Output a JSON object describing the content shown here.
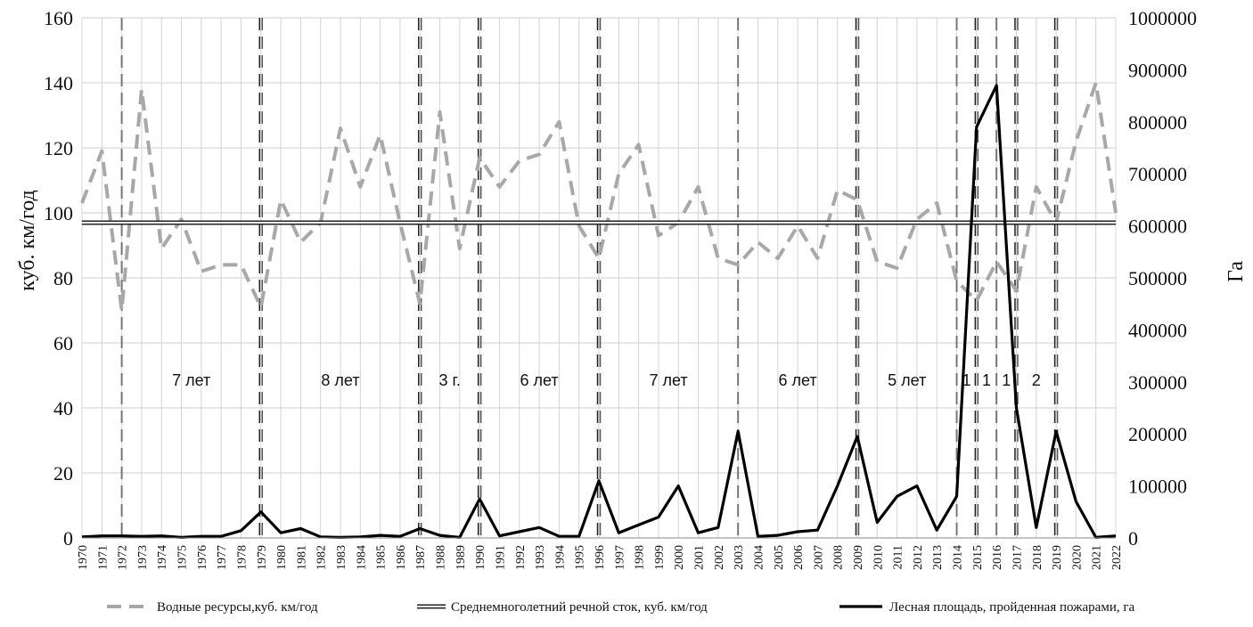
{
  "chart_data": {
    "type": "line",
    "title": "",
    "xlabel": "",
    "ylabel_left": "куб. км/год",
    "ylabel_right": "Га",
    "ylim_left": [
      0,
      160
    ],
    "ylim_right": [
      0,
      1000000
    ],
    "yticks_left": [
      "0",
      "20",
      "40",
      "60",
      "80",
      "100",
      "120",
      "140",
      "160"
    ],
    "yticks_right": [
      "0",
      "100000",
      "200000",
      "300000",
      "400000",
      "500000",
      "600000",
      "700000",
      "800000",
      "900000",
      "1000000"
    ],
    "grid": true,
    "legend_position": "bottom",
    "x": [
      1970,
      1971,
      1972,
      1973,
      1974,
      1975,
      1976,
      1977,
      1978,
      1979,
      1980,
      1981,
      1982,
      1983,
      1984,
      1985,
      1986,
      1987,
      1988,
      1989,
      1990,
      1991,
      1992,
      1993,
      1994,
      1995,
      1996,
      1997,
      1998,
      1999,
      2000,
      2001,
      2002,
      2003,
      2004,
      2005,
      2006,
      2007,
      2008,
      2009,
      2010,
      2011,
      2012,
      2013,
      2014,
      2015,
      2016,
      2017,
      2018,
      2019,
      2020,
      2021,
      2022
    ],
    "series": [
      {
        "name": "Водные ресурсы,куб. км/год",
        "axis": "left",
        "style": "dashed-gray",
        "color": "#a8a8a8",
        "values": [
          103,
          119,
          70,
          138,
          89,
          98,
          82,
          84,
          84,
          71,
          104,
          91,
          97,
          126,
          108,
          124,
          97,
          72,
          131,
          89,
          117,
          108,
          116,
          118,
          128,
          96,
          86,
          112,
          121,
          93,
          97,
          108,
          86,
          84,
          91,
          86,
          96,
          86,
          107,
          104,
          85,
          83,
          98,
          103,
          79,
          73,
          85,
          76,
          108,
          97,
          122,
          140,
          100
        ]
      },
      {
        "name": "Среднемноголетний речной сток, куб. км/год",
        "axis": "left",
        "style": "double",
        "color": "#222222",
        "values": [
          97,
          97,
          97,
          97,
          97,
          97,
          97,
          97,
          97,
          97,
          97,
          97,
          97,
          97,
          97,
          97,
          97,
          97,
          97,
          97,
          97,
          97,
          97,
          97,
          97,
          97,
          97,
          97,
          97,
          97,
          97,
          97,
          97,
          97,
          97,
          97,
          97,
          97,
          97,
          97,
          97,
          97,
          97,
          97,
          97,
          97,
          97,
          97,
          97,
          97,
          97,
          97,
          97
        ]
      },
      {
        "name": "Лесная площадь, пройденная пожарами, га",
        "axis": "right",
        "style": "solid-black",
        "color": "#000000",
        "values": [
          2000,
          4000,
          4000,
          3000,
          4000,
          1000,
          3000,
          3000,
          14000,
          50000,
          10000,
          18000,
          2000,
          1000,
          2000,
          5000,
          3000,
          18000,
          5000,
          1000,
          75000,
          4000,
          12000,
          20000,
          3000,
          3000,
          110000,
          10000,
          25000,
          40000,
          100000,
          10000,
          20000,
          205000,
          3000,
          5000,
          12000,
          15000,
          100000,
          195000,
          30000,
          80000,
          100000,
          15000,
          80000,
          790000,
          870000,
          250000,
          20000,
          205000,
          70000,
          1000,
          4000
        ]
      }
    ],
    "markers": [
      {
        "year": 1972,
        "style": "dashed-gray"
      },
      {
        "year": 1979,
        "style": "dashed-black"
      },
      {
        "year": 1987,
        "style": "dashed-black"
      },
      {
        "year": 1990,
        "style": "dashed-black"
      },
      {
        "year": 1996,
        "style": "dashed-black"
      },
      {
        "year": 2003,
        "style": "dashed-gray"
      },
      {
        "year": 2009,
        "style": "dashed-black"
      },
      {
        "year": 2014,
        "style": "dashed-gray"
      },
      {
        "year": 2015,
        "style": "dashed-black"
      },
      {
        "year": 2016,
        "style": "dashed-gray"
      },
      {
        "year": 2017,
        "style": "dashed-black"
      },
      {
        "year": 2019,
        "style": "dashed-black"
      }
    ],
    "intervals": [
      {
        "label": "7 лет",
        "center_year": 1975.5
      },
      {
        "label": "8 лет",
        "center_year": 1983
      },
      {
        "label": "3 г.",
        "center_year": 1988.5
      },
      {
        "label": "6 лет",
        "center_year": 1993
      },
      {
        "label": "7 лет",
        "center_year": 1999.5
      },
      {
        "label": "6 лет",
        "center_year": 2006
      },
      {
        "label": "5 лет",
        "center_year": 2011.5
      },
      {
        "label": "1",
        "center_year": 2014.5
      },
      {
        "label": "1",
        "center_year": 2015.5
      },
      {
        "label": "1",
        "center_year": 2016.5
      },
      {
        "label": "2",
        "center_year": 2018
      }
    ]
  }
}
